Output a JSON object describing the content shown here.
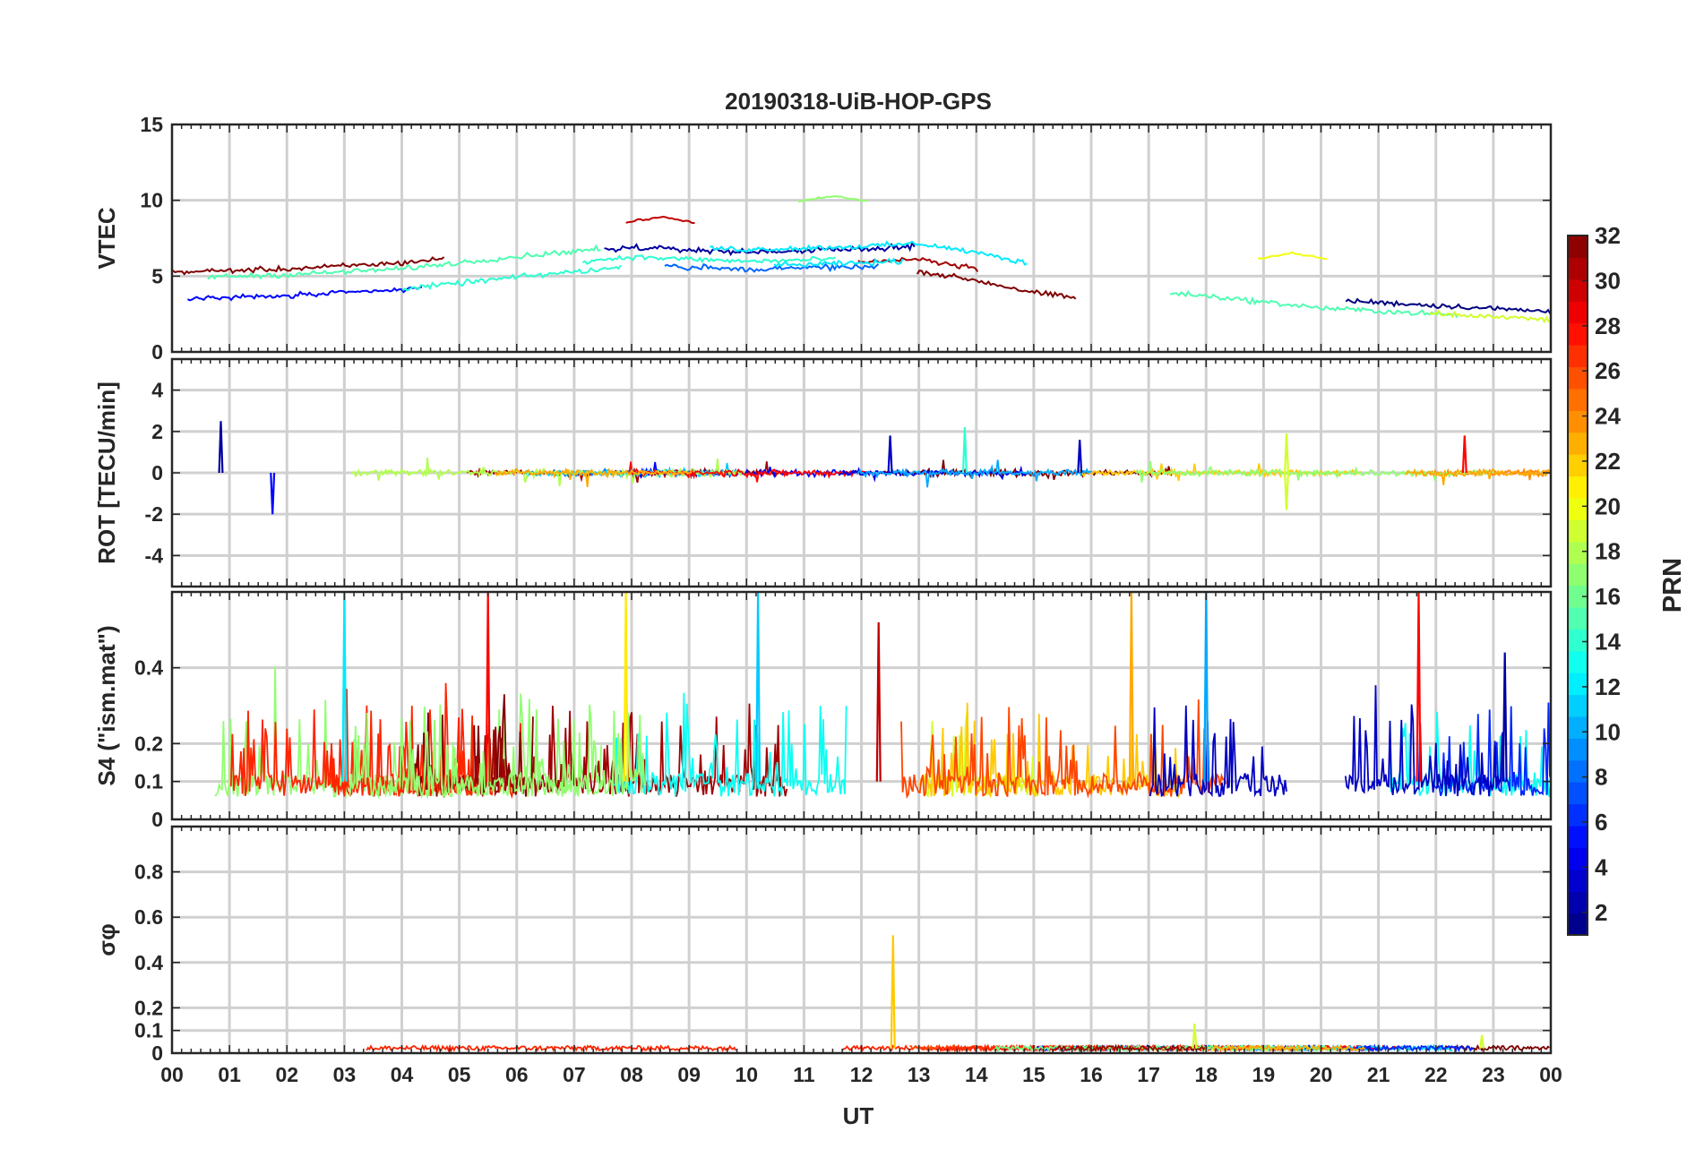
{
  "chart_data": {
    "type": "line",
    "title": "20190318-UiB-HOP-GPS",
    "xlabel": "UT",
    "x_ticks": [
      "00",
      "01",
      "02",
      "03",
      "04",
      "05",
      "06",
      "07",
      "08",
      "09",
      "10",
      "11",
      "12",
      "13",
      "14",
      "15",
      "16",
      "17",
      "18",
      "19",
      "20",
      "21",
      "22",
      "23",
      "00"
    ],
    "xlim": [
      0,
      24
    ],
    "panels": [
      {
        "id": "vtec",
        "ylabel": "VTEC",
        "ylim": [
          0,
          15
        ],
        "yticks": [
          0,
          5,
          10,
          15
        ],
        "ytick_labels": [
          "0",
          "5",
          "10",
          "15"
        ],
        "series_description": "VTEC per PRN, smooth arcs between about 1 and 10 TECU",
        "mean_curve": [
          [
            0,
            4.2
          ],
          [
            2,
            4.4
          ],
          [
            4,
            4.8
          ],
          [
            6,
            5.6
          ],
          [
            8,
            6.3
          ],
          [
            10,
            6.0
          ],
          [
            12,
            6.2
          ],
          [
            13,
            6.4
          ],
          [
            14,
            5.8
          ],
          [
            15,
            5.0
          ],
          [
            16,
            4.5
          ],
          [
            17,
            4.3
          ],
          [
            18,
            4.0
          ],
          [
            19,
            3.6
          ],
          [
            20,
            3.2
          ],
          [
            21,
            3.0
          ],
          [
            22,
            2.8
          ],
          [
            23,
            2.6
          ],
          [
            24,
            2.4
          ]
        ],
        "annotations": [
          {
            "x": 11.5,
            "y": 10.3,
            "prn": 17
          },
          {
            "x": 8.5,
            "y": 8.9,
            "prn": 30
          },
          {
            "x": 19.5,
            "y": 6.5,
            "prn": 20
          }
        ]
      },
      {
        "id": "rot",
        "ylabel": "ROT [TECU/min]",
        "ylim": [
          -5.5,
          5.5
        ],
        "yticks": [
          -4,
          -2,
          0,
          2,
          4
        ],
        "ytick_labels": [
          "-4",
          "-2",
          "0",
          "2",
          "4"
        ],
        "series_description": "Rate of TEC per PRN, mostly within +/-0.5 with spikes to about +/-2",
        "spikes": [
          {
            "x": 0.85,
            "y": 2.5,
            "prn": 2
          },
          {
            "x": 1.75,
            "y": -2.0,
            "prn": 5
          },
          {
            "x": 12.5,
            "y": 1.8,
            "prn": 3
          },
          {
            "x": 13.8,
            "y": 2.2,
            "prn": 14
          },
          {
            "x": 15.8,
            "y": 1.6,
            "prn": 3
          },
          {
            "x": 19.4,
            "y": 1.9,
            "prn": 19
          },
          {
            "x": 19.4,
            "y": -1.8,
            "prn": 19
          },
          {
            "x": 22.5,
            "y": 1.8,
            "prn": 28
          }
        ]
      },
      {
        "id": "s4",
        "ylabel": "S4 (\"ism.mat\")",
        "ylim": [
          0,
          0.6
        ],
        "yticks": [
          0,
          0.1,
          0.2,
          0.4
        ],
        "ytick_labels": [
          "0",
          "0.1",
          "0.2",
          "0.4"
        ],
        "series_description": "S4 amplitude scintillation index per PRN, baseline 0.05-0.15 with bursts",
        "peaks": [
          {
            "x": 3.0,
            "y": 0.6,
            "prn": 12
          },
          {
            "x": 5.5,
            "y": 0.6,
            "prn": 28
          },
          {
            "x": 7.9,
            "y": 0.6,
            "prn": 21
          },
          {
            "x": 10.2,
            "y": 0.6,
            "prn": 11
          },
          {
            "x": 12.3,
            "y": 0.52,
            "prn": 30
          },
          {
            "x": 16.7,
            "y": 0.6,
            "prn": 23
          },
          {
            "x": 18.0,
            "y": 0.6,
            "prn": 10
          },
          {
            "x": 21.7,
            "y": 0.6,
            "prn": 28
          },
          {
            "x": 23.2,
            "y": 0.44,
            "prn": 2
          }
        ]
      },
      {
        "id": "sigma_phi",
        "ylabel": "σφ",
        "ylim": [
          0,
          1.0
        ],
        "yticks": [
          0,
          0.1,
          0.2,
          0.4,
          0.6,
          0.8
        ],
        "ytick_labels": [
          "0",
          "0.1",
          "0.2",
          "0.4",
          "0.6",
          "0.8"
        ],
        "series_description": "Phase scintillation index per PRN, mostly below 0.05",
        "spikes": [
          {
            "x": 12.55,
            "y": 0.52,
            "prn": 22
          },
          {
            "x": 17.8,
            "y": 0.13,
            "prn": 19
          },
          {
            "x": 22.8,
            "y": 0.08,
            "prn": 19
          }
        ]
      }
    ],
    "colorbar": {
      "label": "PRN",
      "range": [
        1,
        32
      ],
      "ticks": [
        2,
        4,
        6,
        8,
        10,
        12,
        14,
        16,
        18,
        20,
        22,
        24,
        26,
        28,
        30,
        32
      ],
      "tick_labels": [
        "2",
        "4",
        "6",
        "8",
        "10",
        "12",
        "14",
        "16",
        "18",
        "20",
        "22",
        "24",
        "26",
        "28",
        "30",
        "32"
      ],
      "colormap": "jet"
    }
  }
}
